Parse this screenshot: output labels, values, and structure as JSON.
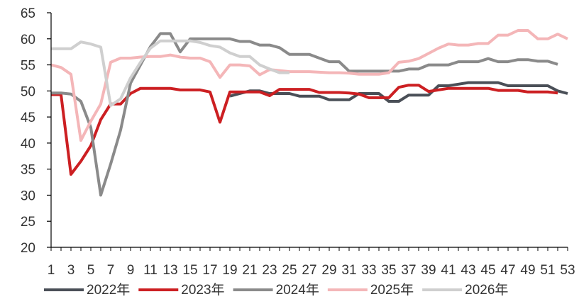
{
  "chart_data": {
    "type": "line",
    "title": "",
    "xlabel": "",
    "ylabel": "",
    "ylim": [
      20,
      65
    ],
    "yticks": [
      20,
      25,
      30,
      35,
      40,
      45,
      50,
      55,
      60,
      65
    ],
    "xlim": [
      1,
      53
    ],
    "xtick_labels": [
      "1",
      "3",
      "5",
      "7",
      "9",
      "11",
      "13",
      "15",
      "17",
      "19",
      "21",
      "23",
      "25",
      "27",
      "29",
      "31",
      "33",
      "35",
      "37",
      "39",
      "41",
      "43",
      "45",
      "47",
      "49",
      "51",
      "53"
    ],
    "grid": false,
    "legend": "bottom",
    "series": [
      {
        "name": "2022年",
        "color": "#4a4f57",
        "x": [
          19,
          20,
          21,
          22,
          23,
          24,
          25,
          26,
          27,
          28,
          29,
          30,
          31,
          32,
          33,
          34,
          35,
          36,
          37,
          38,
          39,
          40,
          41,
          42,
          43,
          44,
          45,
          46,
          47,
          48,
          49,
          50,
          51,
          52,
          53
        ],
        "y": [
          49,
          49.5,
          50,
          50,
          49.5,
          49.5,
          49.5,
          49,
          49,
          49,
          48.3,
          48.3,
          48.3,
          49.5,
          49.5,
          49.5,
          48,
          48,
          49.2,
          49.2,
          49.2,
          51,
          51,
          51.3,
          51.6,
          51.6,
          51.6,
          51.6,
          51,
          51,
          51,
          51,
          51,
          50,
          49.5
        ]
      },
      {
        "name": "2023年",
        "color": "#cc1f22",
        "x": [
          1,
          2,
          3,
          4,
          5,
          6,
          7,
          8,
          9,
          10,
          11,
          12,
          13,
          14,
          15,
          16,
          17,
          18,
          19,
          20,
          21,
          22,
          23,
          24,
          25,
          26,
          27,
          28,
          29,
          30,
          31,
          32,
          33,
          34,
          35,
          36,
          37,
          38,
          39,
          40,
          41,
          42,
          43,
          44,
          45,
          46,
          47,
          48,
          49,
          50,
          51,
          52
        ],
        "y": [
          49.3,
          49.3,
          34,
          36.5,
          39.5,
          44.5,
          47.5,
          47.5,
          49.5,
          50.5,
          50.5,
          50.5,
          50.5,
          50.2,
          50.2,
          50.2,
          49.8,
          44,
          49.8,
          49.8,
          49.8,
          49.8,
          49.1,
          50.3,
          50.3,
          50.3,
          50.3,
          49.7,
          49.7,
          49.7,
          49.6,
          49.4,
          48.7,
          48.7,
          48.7,
          50.7,
          51.1,
          51.1,
          49.9,
          50.2,
          50.5,
          50.5,
          50.5,
          50.5,
          50.5,
          50.1,
          50.1,
          50.1,
          49.8,
          49.8,
          49.8,
          49.6
        ]
      },
      {
        "name": "2024年",
        "color": "#8a8a8a",
        "x": [
          1,
          2,
          3,
          4,
          5,
          6,
          7,
          8,
          9,
          10,
          11,
          12,
          13,
          14,
          15,
          16,
          17,
          18,
          19,
          20,
          21,
          22,
          23,
          24,
          25,
          26,
          27,
          28,
          29,
          30,
          31,
          32,
          33,
          34,
          35,
          36,
          37,
          38,
          39,
          40,
          41,
          42,
          43,
          44,
          45,
          46,
          47,
          48,
          49,
          50,
          51,
          52
        ],
        "y": [
          49.6,
          49.6,
          49.4,
          48,
          43,
          30,
          36,
          42.5,
          51.5,
          55,
          58.5,
          61,
          61,
          57.5,
          60,
          60,
          60,
          60,
          60,
          59.5,
          59.5,
          58.8,
          58.8,
          58.3,
          57,
          57,
          57,
          56.3,
          55.6,
          55.6,
          53.8,
          53.8,
          53.8,
          53.8,
          53.8,
          53.8,
          54.2,
          54.2,
          55,
          55,
          55,
          55.6,
          55.6,
          55.6,
          56.2,
          55.6,
          55.6,
          56,
          56,
          55.7,
          55.7,
          55.1
        ]
      },
      {
        "name": "2025年",
        "color": "#f4b6b8",
        "x": [
          1,
          2,
          3,
          4,
          5,
          6,
          7,
          8,
          9,
          10,
          11,
          12,
          13,
          14,
          15,
          16,
          17,
          18,
          19,
          20,
          21,
          22,
          23,
          24,
          25,
          26,
          27,
          28,
          29,
          30,
          31,
          32,
          33,
          34,
          35,
          36,
          37,
          38,
          39,
          40,
          41,
          42,
          43,
          44,
          45,
          46,
          47,
          48,
          49,
          50,
          51,
          52,
          53
        ],
        "y": [
          55,
          54.5,
          53.2,
          40.5,
          44.2,
          47.5,
          55.5,
          56.3,
          56.3,
          56.5,
          56.6,
          56.6,
          56.9,
          56.5,
          56.3,
          56.3,
          55.6,
          52.6,
          55,
          55,
          54.8,
          53.1,
          54.1,
          53.9,
          53.7,
          53.7,
          53.7,
          53.6,
          53.5,
          53.5,
          53.4,
          53.2,
          53.2,
          53.2,
          53.5,
          55.5,
          55.7,
          56.2,
          57.2,
          58.2,
          59,
          58.8,
          58.8,
          59.1,
          59.1,
          60.7,
          60.7,
          61.6,
          61.6,
          60,
          60,
          60.9,
          60
        ]
      },
      {
        "name": "2026年",
        "color": "#cfcfcf",
        "x": [
          1,
          2,
          3,
          4,
          5,
          6,
          7,
          8,
          9,
          10,
          11,
          12,
          13,
          14,
          15,
          16,
          17,
          18,
          19,
          20,
          21,
          22,
          23,
          24,
          25
        ],
        "y": [
          58.1,
          58.1,
          58.1,
          59.4,
          59,
          58.4,
          47.2,
          48.5,
          52.5,
          55.5,
          58.2,
          59.6,
          59.6,
          59.6,
          59.6,
          59.3,
          58.7,
          58.4,
          57.3,
          56.6,
          56.6,
          55,
          54.2,
          53.5,
          53.5
        ]
      }
    ]
  }
}
